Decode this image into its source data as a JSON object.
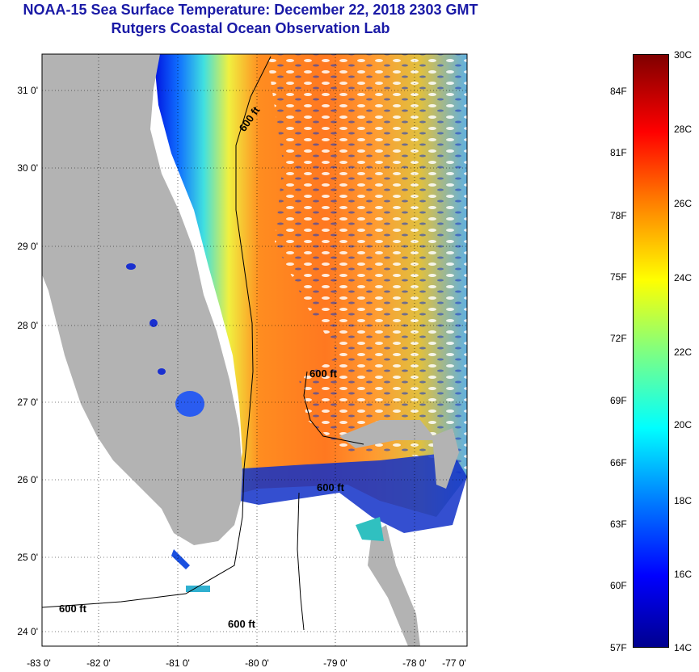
{
  "title": {
    "line1": "NOAA-15 Sea Surface Temperature:  December 22, 2018 2303 GMT",
    "line2": "Rutgers Coastal Ocean Observation Lab"
  },
  "map": {
    "lat_labels": [
      "31 0'",
      "30 0'",
      "29 0'",
      "28 0'",
      "27 0'",
      "26 0'",
      "25 0'",
      "24 0'"
    ],
    "lon_labels": [
      "-83 0'",
      "-82 0'",
      "-81 0'",
      "-80 0'",
      "-79 0'",
      "-78 0'",
      "-77 0'"
    ],
    "contour_labels": [
      "600 ft",
      "600 ft",
      "600 ft",
      "600 ft",
      "600 ft"
    ]
  },
  "colorbar": {
    "celsius": [
      "30C",
      "28C",
      "26C",
      "24C",
      "22C",
      "20C",
      "18C",
      "16C",
      "14C"
    ],
    "fahrenheit": [
      "84F",
      "81F",
      "78F",
      "75F",
      "72F",
      "69F",
      "66F",
      "63F",
      "60F",
      "57F"
    ]
  },
  "colors": {
    "title": "#1a1aa6",
    "land": "#b3b3b3"
  }
}
